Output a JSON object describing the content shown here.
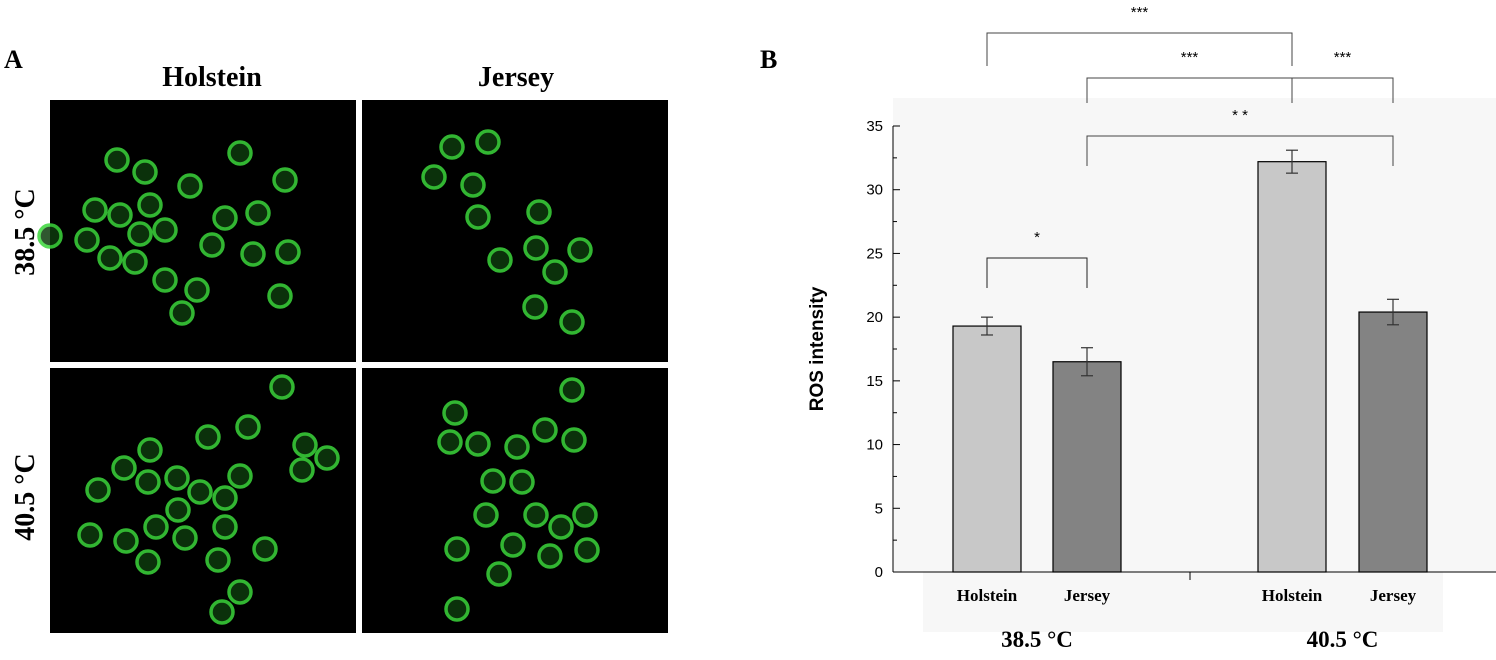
{
  "panel_a": {
    "letter": "A",
    "columns": [
      "Holstein",
      "Jersey"
    ],
    "rows": [
      "38.5 °C",
      "40.5 °C"
    ],
    "cell_color": "#3bd63b"
  },
  "panel_b": {
    "letter": "B"
  },
  "chart_data": {
    "type": "bar",
    "ylabel": "ROS intensity",
    "xlabel": "",
    "ylim": [
      0,
      35
    ],
    "yticks": [
      0,
      5,
      10,
      15,
      20,
      25,
      30,
      35
    ],
    "groups": [
      "38.5 °C",
      "40.5 °C"
    ],
    "categories": [
      "Holstein",
      "Jersey",
      "Holstein",
      "Jersey"
    ],
    "values": [
      19.3,
      16.5,
      32.2,
      20.4
    ],
    "errors": [
      0.7,
      1.1,
      0.9,
      1.0
    ],
    "bar_colors": [
      "#c8c8c8",
      "#838383",
      "#c8c8c8",
      "#838383"
    ],
    "grid": false,
    "annotations": [
      {
        "from": 0,
        "to": 1,
        "label": "*"
      },
      {
        "from": 1,
        "to": 3,
        "label": "* *"
      },
      {
        "from": 2,
        "to": 3,
        "label": "***"
      },
      {
        "from": 1,
        "to": 2,
        "label": "***"
      },
      {
        "from": 0,
        "to": 2,
        "label": "***"
      }
    ]
  }
}
